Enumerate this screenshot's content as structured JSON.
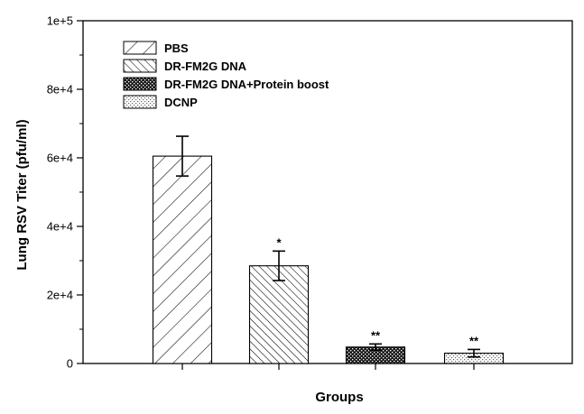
{
  "chart_data": {
    "type": "bar",
    "xlabel": "Groups",
    "ylabel": "Lung RSV Titer (pfu/ml)",
    "ylim": [
      0,
      100000
    ],
    "yticks": [
      {
        "value": 0,
        "label": "0"
      },
      {
        "value": 20000,
        "label": "2e+4"
      },
      {
        "value": 40000,
        "label": "4e+4"
      },
      {
        "value": 60000,
        "label": "6e+4"
      },
      {
        "value": 80000,
        "label": "8e+4"
      },
      {
        "value": 100000,
        "label": "1e+5"
      }
    ],
    "legend_position": "top-left",
    "grid": false,
    "bars": [
      {
        "name": "PBS",
        "value": 60500,
        "error": 5800,
        "pattern": "diag-wide",
        "significance": ""
      },
      {
        "name": "DR-FM2G DNA",
        "value": 28500,
        "error": 4300,
        "pattern": "diag-dense",
        "significance": "*"
      },
      {
        "name": "DR-FM2G DNA+Protein boost",
        "value": 4800,
        "error": 900,
        "pattern": "dots-dark",
        "significance": "**"
      },
      {
        "name": "DCNP",
        "value": 3000,
        "error": 1100,
        "pattern": "dots-light",
        "significance": "**"
      }
    ]
  }
}
